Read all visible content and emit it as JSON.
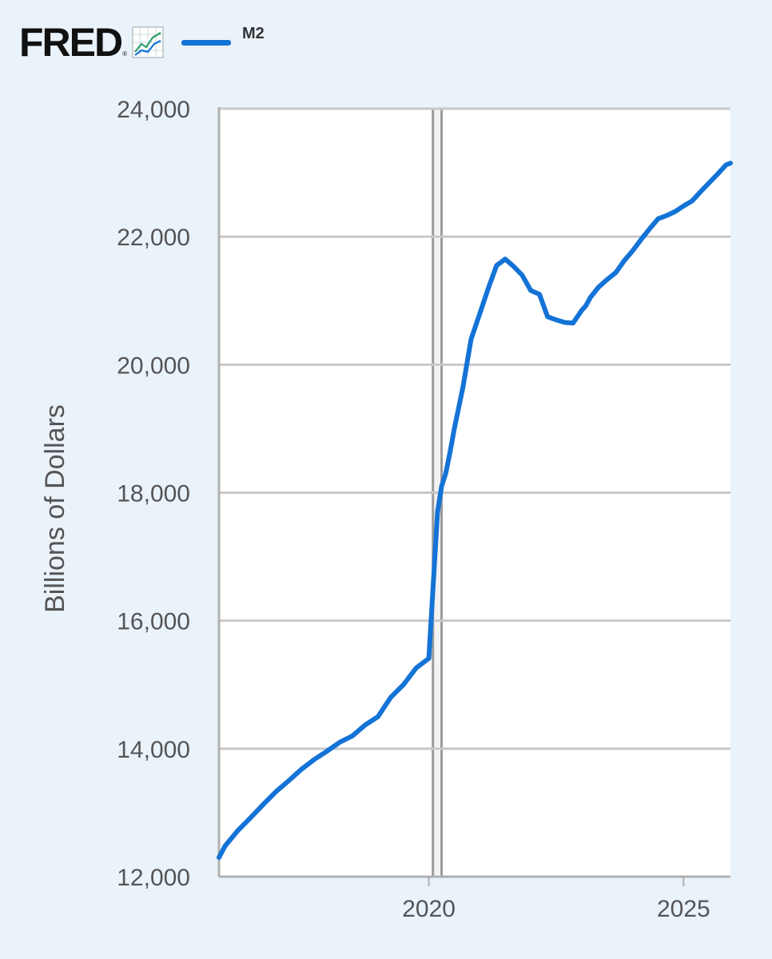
{
  "header": {
    "logo_text": "FRED",
    "logo_reg": "®",
    "legend_label": "M2"
  },
  "colors": {
    "series": "#1473d6",
    "background": "#eaf2fa",
    "plot_background": "#ffffff",
    "grid": "#c8c8c8",
    "icon_green": "#2e9e6b",
    "icon_blue": "#1473d6"
  },
  "chart_data": {
    "type": "line",
    "title": "",
    "xlabel": "",
    "ylabel": "Billions of Dollars",
    "xlim": [
      2015.88,
      2025.92
    ],
    "ylim": [
      12000,
      24000
    ],
    "yticks": [
      12000,
      14000,
      16000,
      18000,
      20000,
      22000,
      24000
    ],
    "ytick_labels": [
      "12,000",
      "14,000",
      "16,000",
      "18,000",
      "20,000",
      "22,000",
      "24,000"
    ],
    "xticks": [
      2020,
      2025
    ],
    "xtick_labels": [
      "2020",
      "2025"
    ],
    "recession_band": [
      2020.08,
      2020.25
    ],
    "grid": true,
    "legend": "top-left",
    "series": [
      {
        "name": "M2",
        "x": [
          2015.88,
          2016.0,
          2016.25,
          2016.5,
          2016.75,
          2017.0,
          2017.25,
          2017.5,
          2017.75,
          2018.0,
          2018.25,
          2018.5,
          2018.75,
          2019.0,
          2019.25,
          2019.5,
          2019.75,
          2020.0,
          2020.17,
          2020.25,
          2020.33,
          2020.42,
          2020.5,
          2020.67,
          2020.83,
          2021.0,
          2021.17,
          2021.33,
          2021.5,
          2021.67,
          2021.83,
          2022.0,
          2022.17,
          2022.33,
          2022.5,
          2022.67,
          2022.83,
          2023.0,
          2023.08,
          2023.17,
          2023.33,
          2023.5,
          2023.67,
          2023.83,
          2024.0,
          2024.17,
          2024.33,
          2024.5,
          2024.67,
          2024.83,
          2025.0,
          2025.17,
          2025.33,
          2025.5,
          2025.67,
          2025.83,
          2025.92
        ],
        "values": [
          12300,
          12480,
          12720,
          12920,
          13130,
          13330,
          13500,
          13680,
          13830,
          13960,
          14100,
          14200,
          14370,
          14500,
          14800,
          15000,
          15260,
          15410,
          17700,
          18100,
          18300,
          18650,
          19000,
          19650,
          20400,
          20800,
          21200,
          21550,
          21650,
          21530,
          21400,
          21160,
          21100,
          20750,
          20700,
          20660,
          20650,
          20850,
          20920,
          21050,
          21210,
          21330,
          21440,
          21620,
          21780,
          21960,
          22120,
          22280,
          22330,
          22390,
          22480,
          22560,
          22700,
          22840,
          22980,
          23120,
          23150
        ]
      }
    ]
  }
}
